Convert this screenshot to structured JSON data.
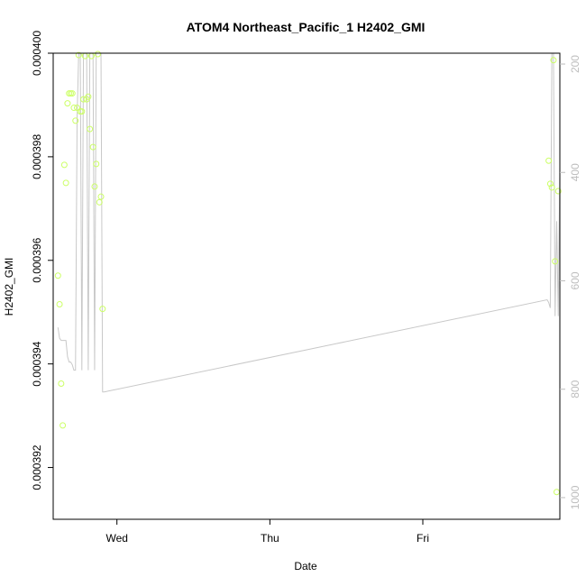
{
  "chart_data": {
    "type": "scatter",
    "title": "ATOM4 Northeast_Pacific_1 H2402_GMI",
    "xlabel": "Date",
    "ylabel": "H2402_GMI",
    "x_axis": {
      "type": "date",
      "range": [
        "2016-07-26T14:00",
        "2016-07-29T21:30"
      ],
      "ticks": [
        {
          "value": "2016-07-27T00:00",
          "label": "Wed"
        },
        {
          "value": "2016-07-28T00:00",
          "label": "Thu"
        },
        {
          "value": "2016-07-29T00:00",
          "label": "Fri"
        }
      ]
    },
    "y_axis": {
      "range": [
        0.000391,
        0.0004
      ],
      "ticks": [
        {
          "value": 0.000392,
          "label": "0.000392"
        },
        {
          "value": 0.000394,
          "label": "0.000394"
        },
        {
          "value": 0.000396,
          "label": "0.000396"
        },
        {
          "value": 0.000398,
          "label": "0.000398"
        },
        {
          "value": 0.0004,
          "label": "0.000400"
        }
      ]
    },
    "y2_axis": {
      "reversed": true,
      "range": [
        1040,
        180
      ],
      "ticks": [
        {
          "value": 200,
          "label": "200"
        },
        {
          "value": 400,
          "label": "400"
        },
        {
          "value": 600,
          "label": "600"
        },
        {
          "value": 800,
          "label": "800"
        },
        {
          "value": 1000,
          "label": "1000"
        }
      ]
    },
    "grid": false,
    "series": [
      {
        "kind": "points",
        "axis": "left",
        "color": "#ccff66",
        "points": [
          {
            "x": "2016-07-26T14:45",
            "y": 0.000395705
          },
          {
            "x": "2016-07-26T15:00",
            "y": 0.000395152
          },
          {
            "x": "2016-07-26T15:15",
            "y": 0.00039362
          },
          {
            "x": "2016-07-26T15:30",
            "y": 0.000392813
          },
          {
            "x": "2016-07-26T15:45",
            "y": 0.000397844
          },
          {
            "x": "2016-07-26T16:00",
            "y": 0.000397496
          },
          {
            "x": "2016-07-26T16:15",
            "y": 0.000399032
          },
          {
            "x": "2016-07-26T16:30",
            "y": 0.000399224
          },
          {
            "x": "2016-07-26T16:45",
            "y": 0.000399224
          },
          {
            "x": "2016-07-26T17:00",
            "y": 0.000399224
          },
          {
            "x": "2016-07-26T17:15",
            "y": 0.000398946
          },
          {
            "x": "2016-07-26T17:30",
            "y": 0.000398696
          },
          {
            "x": "2016-07-26T17:45",
            "y": 0.000398946
          },
          {
            "x": "2016-07-26T18:00",
            "y": 0.000399964
          },
          {
            "x": "2016-07-26T18:15",
            "y": 0.000398875
          },
          {
            "x": "2016-07-26T18:30",
            "y": 0.000398875
          },
          {
            "x": "2016-07-26T18:45",
            "y": 0.00039911
          },
          {
            "x": "2016-07-26T19:00",
            "y": 0.000399946
          },
          {
            "x": "2016-07-26T19:15",
            "y": 0.00039911
          },
          {
            "x": "2016-07-26T19:30",
            "y": 0.00039916
          },
          {
            "x": "2016-07-26T19:45",
            "y": 0.000398536
          },
          {
            "x": "2016-07-26T20:00",
            "y": 0.000399946
          },
          {
            "x": "2016-07-26T20:15",
            "y": 0.000398188
          },
          {
            "x": "2016-07-26T20:30",
            "y": 0.000397425
          },
          {
            "x": "2016-07-26T20:45",
            "y": 0.000397861
          },
          {
            "x": "2016-07-26T21:00",
            "y": 0.000399982
          },
          {
            "x": "2016-07-26T21:15",
            "y": 0.000397122
          },
          {
            "x": "2016-07-26T21:30",
            "y": 0.000397229
          },
          {
            "x": "2016-07-26T21:45",
            "y": 0.000395063
          },
          {
            "x": "2016-07-29T19:45",
            "y": 0.000397924
          },
          {
            "x": "2016-07-29T20:00",
            "y": 0.000397478
          },
          {
            "x": "2016-07-29T20:15",
            "y": 0.000397407
          },
          {
            "x": "2016-07-29T20:30",
            "y": 0.000399865
          },
          {
            "x": "2016-07-29T20:45",
            "y": 0.000395981
          },
          {
            "x": "2016-07-29T21:00",
            "y": 0.000391527
          },
          {
            "x": "2016-07-29T21:15",
            "y": 0.000397336
          }
        ]
      },
      {
        "kind": "line",
        "axis": "right",
        "color": "#c8c8c8",
        "points": [
          {
            "x": "2016-07-26T14:45",
            "y": 686
          },
          {
            "x": "2016-07-26T15:00",
            "y": 706
          },
          {
            "x": "2016-07-26T15:15",
            "y": 710
          },
          {
            "x": "2016-07-26T15:30",
            "y": 710
          },
          {
            "x": "2016-07-26T15:45",
            "y": 710
          },
          {
            "x": "2016-07-26T16:00",
            "y": 710
          },
          {
            "x": "2016-07-26T16:15",
            "y": 740
          },
          {
            "x": "2016-07-26T16:30",
            "y": 750
          },
          {
            "x": "2016-07-26T16:45",
            "y": 750
          },
          {
            "x": "2016-07-26T17:00",
            "y": 755
          },
          {
            "x": "2016-07-26T17:15",
            "y": 765
          },
          {
            "x": "2016-07-26T17:30",
            "y": 765
          },
          {
            "x": "2016-07-26T17:45",
            "y": 300
          },
          {
            "x": "2016-07-26T18:00",
            "y": 180
          },
          {
            "x": "2016-07-26T18:15",
            "y": 180
          },
          {
            "x": "2016-07-26T18:30",
            "y": 765
          },
          {
            "x": "2016-07-26T18:45",
            "y": 180
          },
          {
            "x": "2016-07-26T19:00",
            "y": 180
          },
          {
            "x": "2016-07-26T19:15",
            "y": 180
          },
          {
            "x": "2016-07-26T19:30",
            "y": 765
          },
          {
            "x": "2016-07-26T19:45",
            "y": 180
          },
          {
            "x": "2016-07-26T20:00",
            "y": 180
          },
          {
            "x": "2016-07-26T20:15",
            "y": 180
          },
          {
            "x": "2016-07-26T20:30",
            "y": 765
          },
          {
            "x": "2016-07-26T20:45",
            "y": 180
          },
          {
            "x": "2016-07-26T21:00",
            "y": 180
          },
          {
            "x": "2016-07-26T21:15",
            "y": 180
          },
          {
            "x": "2016-07-26T21:30",
            "y": 180
          },
          {
            "x": "2016-07-26T21:45",
            "y": 805
          },
          {
            "x": "2016-07-26T22:00",
            "y": 805
          },
          {
            "x": "2016-07-29T19:30",
            "y": 635
          },
          {
            "x": "2016-07-29T19:45",
            "y": 640
          },
          {
            "x": "2016-07-29T20:00",
            "y": 650
          },
          {
            "x": "2016-07-29T20:15",
            "y": 180
          },
          {
            "x": "2016-07-29T20:30",
            "y": 180
          },
          {
            "x": "2016-07-29T20:45",
            "y": 665
          },
          {
            "x": "2016-07-29T21:00",
            "y": 490
          },
          {
            "x": "2016-07-29T21:15",
            "y": 665
          },
          {
            "x": "2016-07-29T21:30",
            "y": 390
          }
        ]
      }
    ]
  }
}
